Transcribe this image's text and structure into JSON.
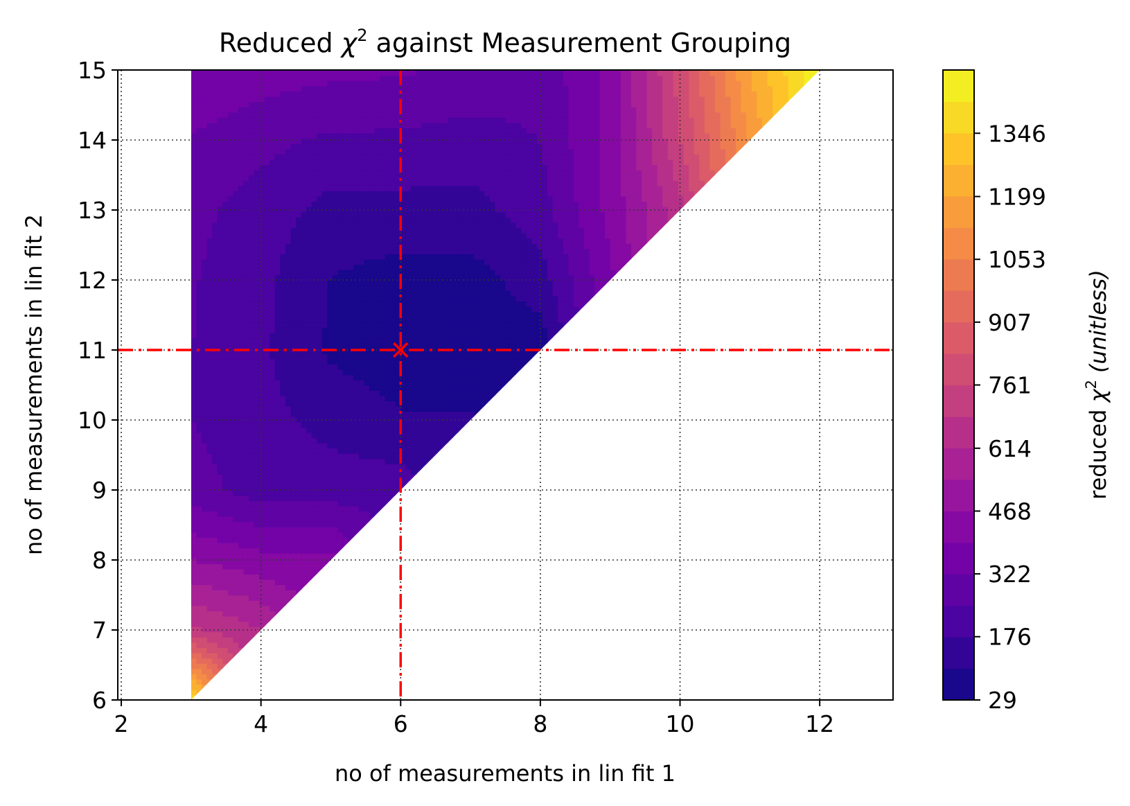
{
  "chart_data": {
    "type": "heatmap",
    "subtype": "filled-contour",
    "title": {
      "prefix": "Reduced ",
      "symbol": "χ",
      "sup": "2",
      "suffix": " against Measurement Grouping"
    },
    "xlabel": "no of measurements in lin fit 1",
    "ylabel": "no of measurements in lin fit 2",
    "xlim": [
      1.95,
      13.05
    ],
    "ylim": [
      6,
      15
    ],
    "xticks": [
      "2",
      "4",
      "6",
      "8",
      "10",
      "12"
    ],
    "yticks": [
      "6",
      "7",
      "8",
      "9",
      "10",
      "11",
      "12",
      "13",
      "14",
      "15"
    ],
    "grid": true,
    "colormap": "plasma",
    "colorbar": {
      "label_prefix": "reduced ",
      "label_symbol": "χ",
      "label_sup": "2",
      "label_unit": "(unitless)",
      "ticks": [
        "29",
        "176",
        "322",
        "468",
        "614",
        "761",
        "907",
        "1053",
        "1199",
        "1346"
      ],
      "range": [
        29,
        1493
      ],
      "levels": 20
    },
    "x": [
      3,
      4,
      5,
      6,
      7,
      8,
      9,
      10,
      11,
      12
    ],
    "y": [
      6,
      7,
      8,
      9,
      10,
      11,
      12,
      13,
      14,
      15
    ],
    "z_note_valid_region": "y >= x + 3",
    "z": [
      [
        1420,
        null,
        null,
        null,
        null,
        null,
        null,
        null,
        null,
        null
      ],
      [
        700,
        620,
        null,
        null,
        null,
        null,
        null,
        null,
        null,
        null
      ],
      [
        470,
        420,
        420,
        null,
        null,
        null,
        null,
        null,
        null,
        null
      ],
      [
        280,
        215,
        215,
        215,
        null,
        null,
        null,
        null,
        null,
        null
      ],
      [
        250,
        200,
        150,
        110,
        110,
        null,
        null,
        null,
        null,
        null
      ],
      [
        250,
        190,
        90,
        60,
        60,
        60,
        null,
        null,
        null,
        null
      ],
      [
        255,
        195,
        100,
        70,
        70,
        140,
        380,
        null,
        null,
        null
      ],
      [
        270,
        215,
        150,
        150,
        150,
        215,
        420,
        660,
        null,
        null
      ],
      [
        315,
        270,
        235,
        235,
        215,
        250,
        420,
        760,
        1130,
        null
      ],
      [
        390,
        360,
        340,
        330,
        310,
        270,
        420,
        800,
        1200,
        1493
      ]
    ],
    "best_point": {
      "x": 6,
      "y": 11,
      "marker": "x",
      "color": "#ff0000"
    },
    "reference_lines": [
      {
        "orientation": "vertical",
        "x": 6,
        "style": "dash-dot",
        "color": "#ff0000"
      },
      {
        "orientation": "horizontal",
        "y": 11,
        "style": "dash-dot",
        "color": "#ff0000"
      }
    ]
  }
}
